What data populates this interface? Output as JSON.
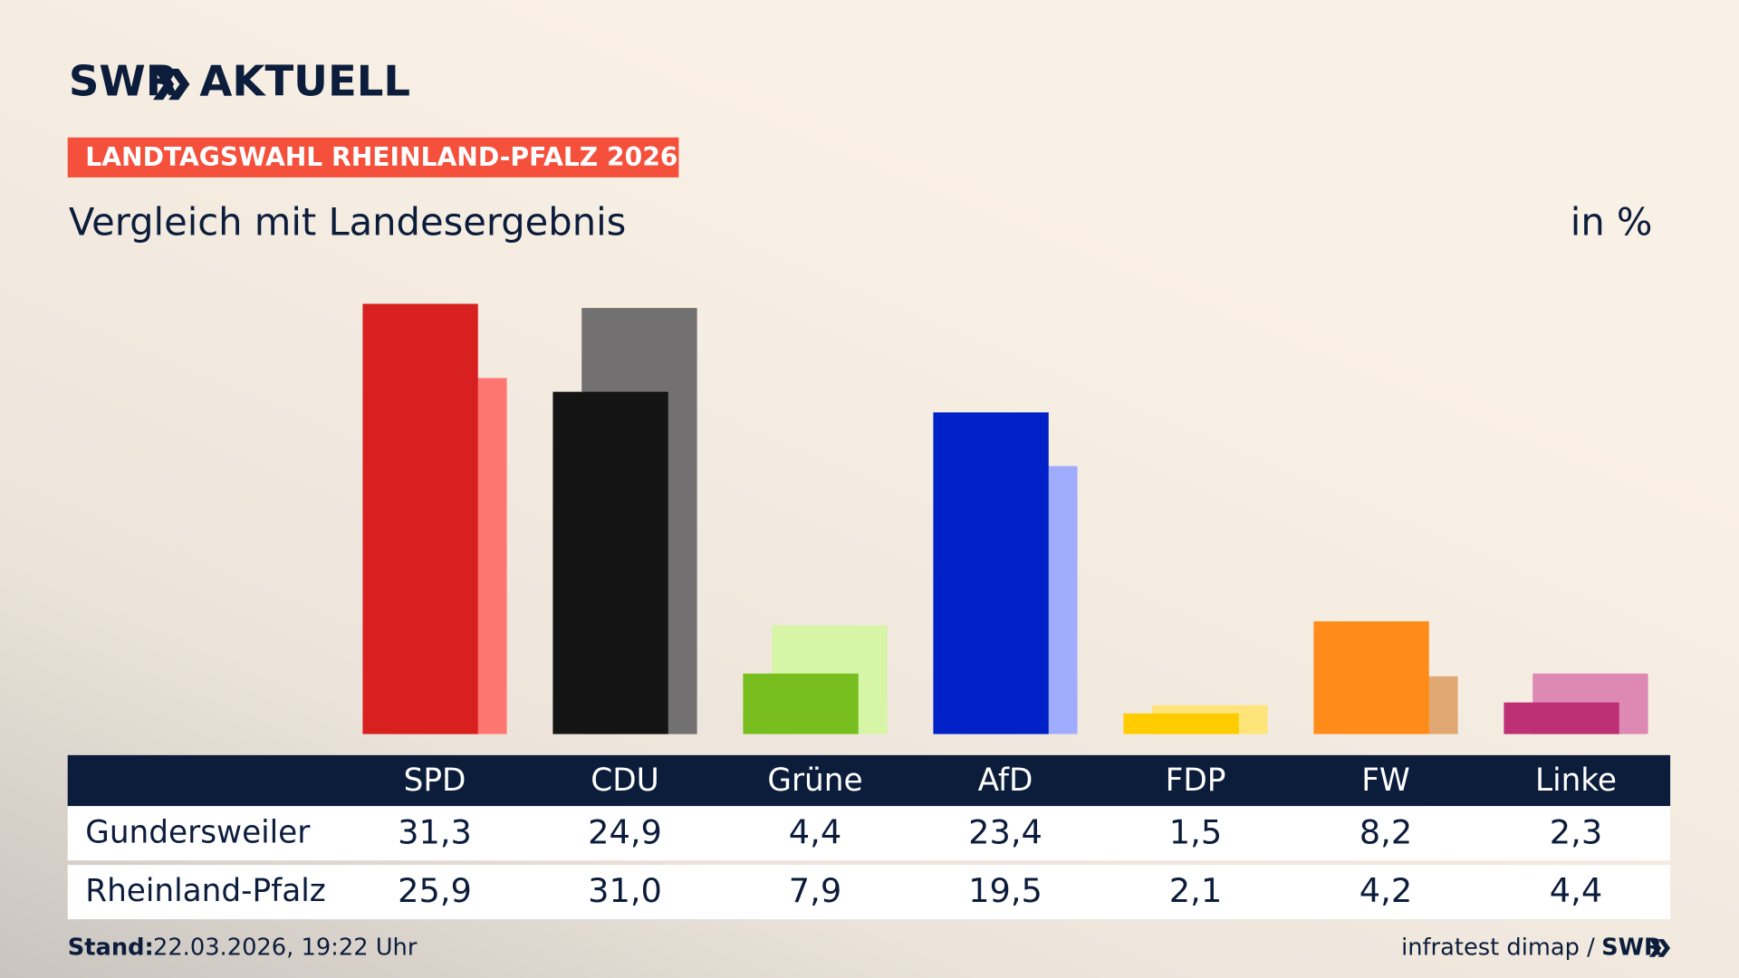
{
  "header": {
    "logo": "SWR",
    "logo_suffix": "AKTUELL",
    "badge": "LANDTAGSWAHL RHEINLAND-PFALZ 2026"
  },
  "chart_data": {
    "type": "bar",
    "title": "Vergleich mit Landesergebnis",
    "unit": "in %",
    "categories": [
      "SPD",
      "CDU",
      "Grüne",
      "AfD",
      "FDP",
      "FW",
      "Linke"
    ],
    "series": [
      {
        "name": "Gundersweiler",
        "colors": [
          "#d82020",
          "#141414",
          "#78be1e",
          "#0021c8",
          "#ffcc00",
          "#ff8c19",
          "#be3075"
        ],
        "values": [
          31.3,
          24.9,
          4.4,
          23.4,
          1.5,
          8.2,
          2.3
        ],
        "value_labels": [
          "31,3",
          "24,9",
          "4,4",
          "23,4",
          "1,5",
          "8,2",
          "2,3"
        ]
      },
      {
        "name": "Rheinland-Pfalz",
        "colors": [
          "#ff7570",
          "#727070",
          "#d6f5a6",
          "#a0adff",
          "#ffe47a",
          "#e0a872",
          "#de88b4"
        ],
        "values": [
          25.9,
          31.0,
          7.9,
          19.5,
          2.1,
          4.2,
          4.4
        ],
        "value_labels": [
          "25,9",
          "31,0",
          "7,9",
          "19,5",
          "2,1",
          "4,2",
          "4,4"
        ]
      }
    ]
  },
  "footer": {
    "stand_label": "Stand:",
    "stand": "22.03.2026, 19:22 Uhr",
    "source": "infratest dimap /",
    "source_logo": "SWR"
  }
}
